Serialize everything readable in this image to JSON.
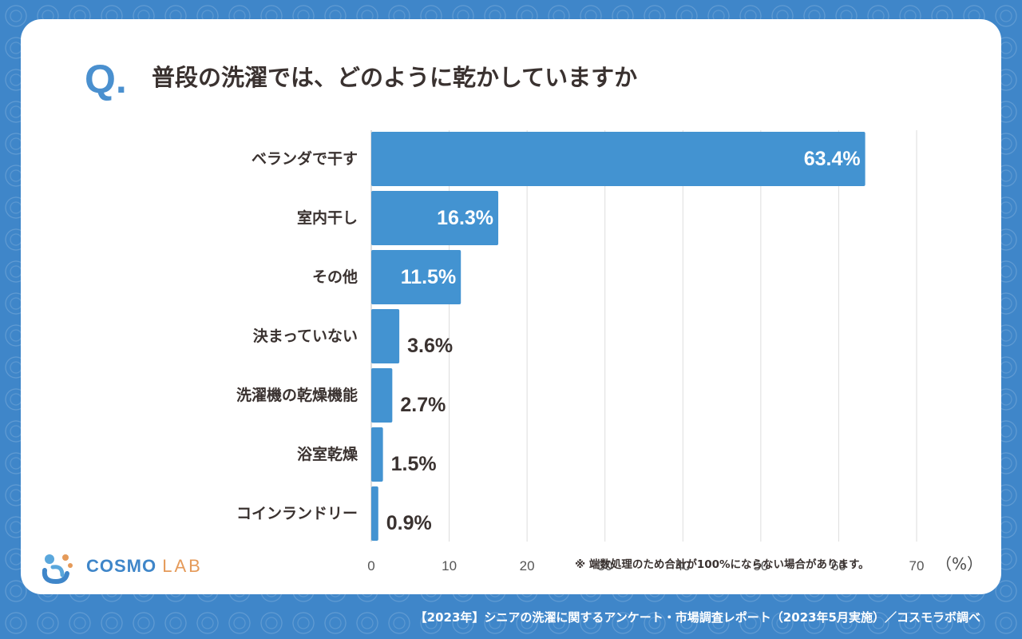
{
  "question": {
    "mark": "Q.",
    "title": "普段の洗濯では、どのように乾かしていますか"
  },
  "chart_data": {
    "type": "bar",
    "orientation": "horizontal",
    "categories": [
      "ベランダで干す",
      "室内干し",
      "その他",
      "決まっていない",
      "洗濯機の乾燥機能",
      "浴室乾燥",
      "コインランドリー"
    ],
    "values": [
      63.4,
      16.3,
      11.5,
      3.6,
      2.7,
      1.5,
      0.9
    ],
    "value_labels": [
      "63.4%",
      "16.3%",
      "11.5%",
      "3.6%",
      "2.7%",
      "1.5%",
      "0.9%"
    ],
    "xlim": [
      0,
      70
    ],
    "xticks": [
      0,
      10,
      20,
      30,
      40,
      50,
      60,
      70
    ],
    "xtick_labels": [
      "0",
      "10",
      "20",
      "30",
      "40",
      "50",
      "60",
      "70"
    ],
    "unit_label": "（%）",
    "grid": true,
    "bar_color": "#4393d1"
  },
  "note": "※ 端数処理のため合計が100%にならない場合があります。",
  "logo": {
    "name": "COSMO",
    "suffix": "LAB"
  },
  "footer": "【2023年】シニアの洗濯に関するアンケート・市場調査レポート（2023年5月実施）／コスモラボ調べ"
}
